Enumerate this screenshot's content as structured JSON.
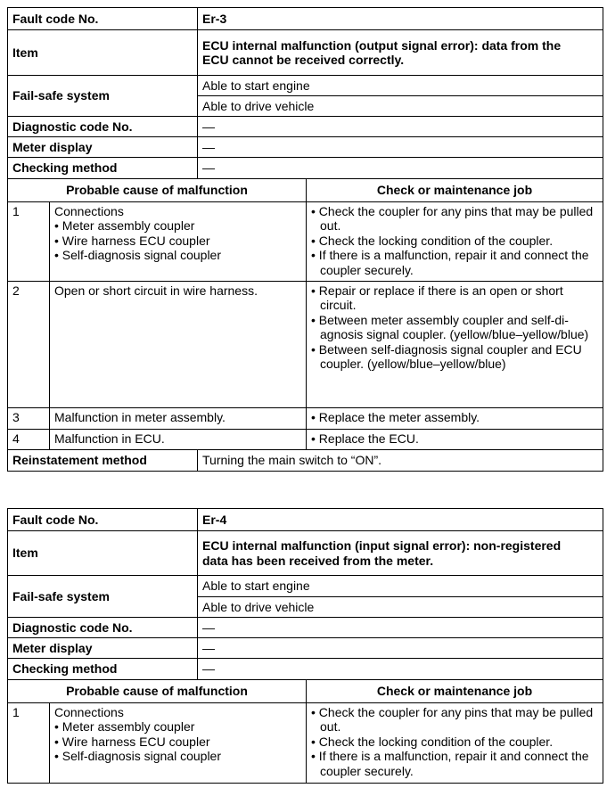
{
  "faults": [
    {
      "fault_code_label": "Fault code No.",
      "fault_code": "Er-3",
      "item_label": "Item",
      "item": [
        "ECU internal malfunction (output signal error): data from the",
        "ECU cannot be received correctly."
      ],
      "failsafe_label": "Fail-safe system",
      "failsafe": [
        "Able to start engine",
        "Able to drive vehicle"
      ],
      "diagnostic_label": "Diagnostic code No.",
      "diagnostic": "—",
      "meter_label": "Meter display",
      "meter": "—",
      "checking_label": "Checking method",
      "checking": "—",
      "cause_header": "Probable cause of malfunction",
      "check_header": "Check or maintenance job",
      "rows": [
        {
          "no": "1",
          "cause": [
            "Connections",
            "• Meter assembly coupler",
            "• Wire harness ECU coupler",
            "• Self-diagnosis signal coupler"
          ],
          "check": [
            "• Check the coupler for any pins that may be pulled out.",
            "• Check the locking condition of the coupler.",
            "• If there is a malfunction, repair it and connect the coupler securely."
          ]
        },
        {
          "no": "2",
          "cause": [
            "Open or short circuit in wire harness."
          ],
          "check": [
            "• Repair or replace if there is an open or short circuit.",
            "• Between meter assembly coupler and self-di-agnosis signal coupler. (yellow/blue–yellow/blue)",
            "• Between self-diagnosis signal coupler and ECU coupler. (yellow/blue–yellow/blue)"
          ]
        },
        {
          "no": "3",
          "cause": [
            "Malfunction in meter assembly."
          ],
          "check": [
            "• Replace the meter assembly."
          ]
        },
        {
          "no": "4",
          "cause": [
            "Malfunction in ECU."
          ],
          "check": [
            "• Replace the ECU."
          ]
        }
      ],
      "reinstatement_label": "Reinstatement method",
      "reinstatement": "Turning the main switch to “ON”."
    },
    {
      "fault_code_label": "Fault code No.",
      "fault_code": "Er-4",
      "item_label": "Item",
      "item": [
        "ECU internal malfunction (input signal error): non-registered",
        "data has been received from the meter."
      ],
      "failsafe_label": "Fail-safe system",
      "failsafe": [
        "Able to start engine",
        "Able to drive vehicle"
      ],
      "diagnostic_label": "Diagnostic code No.",
      "diagnostic": "—",
      "meter_label": "Meter display",
      "meter": "—",
      "checking_label": "Checking method",
      "checking": "—",
      "cause_header": "Probable cause of malfunction",
      "check_header": "Check or maintenance job",
      "rows": [
        {
          "no": "1",
          "cause": [
            "Connections",
            "• Meter assembly coupler",
            "• Wire harness ECU coupler",
            "• Self-diagnosis signal coupler"
          ],
          "check": [
            "• Check the coupler for any pins that may be pulled out.",
            "• Check the locking condition of the coupler.",
            "• If there is a malfunction, repair it and connect the coupler securely."
          ]
        }
      ]
    }
  ]
}
